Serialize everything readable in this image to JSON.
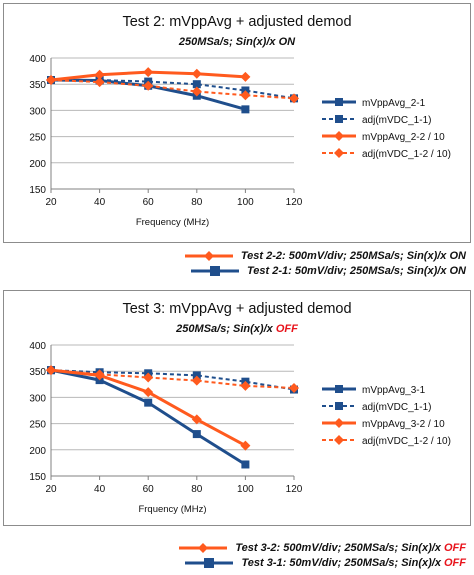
{
  "charts": [
    {
      "title": "Test 2: mVppAvg + adjusted demod",
      "subtitle_prefix": "250MSa/s; Sin(x)/x ",
      "subtitle_flag": "ON",
      "subtitle_flag_color": "#111111",
      "bottom_legend": [
        {
          "text_prefix": "Test 2-2: 500mV/div; 250MSa/s; Sin(x)/x ",
          "flag": "ON",
          "color": "#ff5a1e"
        },
        {
          "text_prefix": "Test 2-1: 50mV/div; 250MSa/s; Sin(x)/x ",
          "flag": "ON",
          "color": "#1f4e8c"
        }
      ]
    },
    {
      "title": "Test 3: mVppAvg + adjusted demod",
      "subtitle_prefix": "250MSa/s; Sin(x)/x ",
      "subtitle_flag": "OFF",
      "subtitle_flag_color": "#e8141c",
      "bottom_legend": [
        {
          "text_prefix": "Test 3-2: 500mV/div; 250MSa/s; Sin(x)/x ",
          "flag": "OFF",
          "color": "#ff5a1e"
        },
        {
          "text_prefix": "Test 3-1: 50mV/div; 250MSa/s; Sin(x)/x ",
          "flag": "OFF",
          "color": "#1f4e8c"
        }
      ]
    }
  ],
  "chart_data": [
    {
      "type": "line",
      "title": "Test 2: mVppAvg + adjusted demod",
      "subtitle": "250MSa/s; Sin(x)/x ON",
      "xlabel": "Frequency (MHz)",
      "ylabel": "",
      "x_ticks": [
        20,
        40,
        60,
        80,
        100,
        120
      ],
      "y_ticks": [
        150,
        200,
        250,
        300,
        350,
        400
      ],
      "xlim": [
        20,
        120
      ],
      "ylim": [
        150,
        400
      ],
      "grid": "horizontal",
      "legend_position": "right",
      "series": [
        {
          "name": "mVppAvg_2-1",
          "color": "#1f4e8c",
          "dash": false,
          "marker": "square",
          "x": [
            20,
            40,
            60,
            80,
            100
          ],
          "y": [
            358,
            357,
            347,
            328,
            302
          ]
        },
        {
          "name": "adj(mVDC_1-1)",
          "color": "#1f4e8c",
          "dash": true,
          "marker": "square",
          "x": [
            20,
            40,
            60,
            80,
            100,
            120
          ],
          "y": [
            358,
            358,
            355,
            350,
            338,
            323
          ]
        },
        {
          "name": "mVppAvg_2-2 / 10",
          "color": "#ff5a1e",
          "dash": false,
          "marker": "diamond",
          "x": [
            20,
            40,
            60,
            80,
            100
          ],
          "y": [
            358,
            368,
            373,
            370,
            364
          ]
        },
        {
          "name": "adj(mVDC_1-2 / 10)",
          "color": "#ff5a1e",
          "dash": true,
          "marker": "diamond",
          "x": [
            20,
            40,
            60,
            80,
            100,
            120
          ],
          "y": [
            358,
            354,
            347,
            336,
            329,
            323
          ]
        }
      ]
    },
    {
      "type": "line",
      "title": "Test 3: mVppAvg + adjusted demod",
      "subtitle": "250MSa/s; Sin(x)/x OFF",
      "xlabel": "Frquency (MHz)",
      "ylabel": "",
      "x_ticks": [
        20,
        40,
        60,
        80,
        100,
        120
      ],
      "y_ticks": [
        150,
        200,
        250,
        300,
        350,
        400
      ],
      "xlim": [
        20,
        120
      ],
      "ylim": [
        150,
        400
      ],
      "grid": "horizontal",
      "legend_position": "right",
      "series": [
        {
          "name": "mVppAvg_3-1",
          "color": "#1f4e8c",
          "dash": false,
          "marker": "square",
          "x": [
            20,
            40,
            60,
            80,
            100
          ],
          "y": [
            352,
            333,
            290,
            230,
            172
          ]
        },
        {
          "name": "adj(mVDC_1-1)",
          "color": "#1f4e8c",
          "dash": true,
          "marker": "square",
          "x": [
            20,
            40,
            60,
            80,
            100,
            120
          ],
          "y": [
            352,
            348,
            346,
            342,
            330,
            315
          ]
        },
        {
          "name": "mVppAvg_3-2 / 10",
          "color": "#ff5a1e",
          "dash": false,
          "marker": "diamond",
          "x": [
            20,
            40,
            60,
            80,
            100
          ],
          "y": [
            352,
            342,
            310,
            258,
            208
          ]
        },
        {
          "name": "adj(mVDC_1-2 / 10)",
          "color": "#ff5a1e",
          "dash": true,
          "marker": "diamond",
          "x": [
            20,
            40,
            60,
            80,
            100,
            120
          ],
          "y": [
            352,
            344,
            338,
            332,
            322,
            318
          ]
        }
      ]
    }
  ]
}
